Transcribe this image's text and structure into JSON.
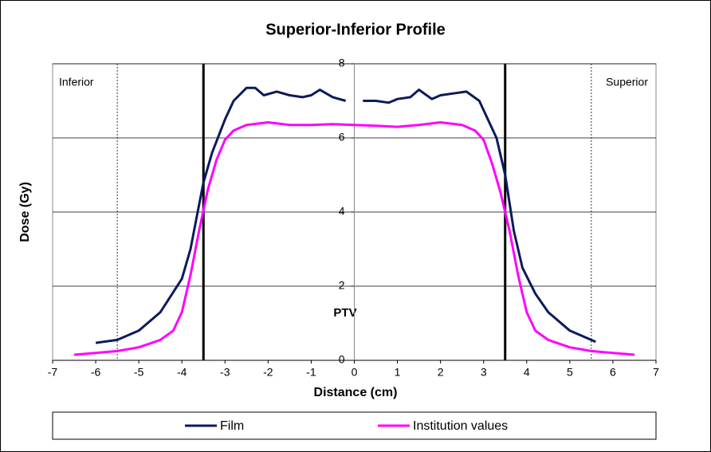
{
  "chart_data": {
    "type": "line",
    "title": "Superior-Inferior Profile",
    "x_label": "Distance (cm)",
    "y_label": "Dose (Gy)",
    "annotations": [
      "Inferior",
      "Superior",
      "PTV"
    ],
    "xlim": [
      -7,
      7
    ],
    "ylim": [
      0,
      8
    ],
    "xticks": [
      -7,
      -6,
      -5,
      -4,
      -3,
      -2,
      -1,
      0,
      1,
      2,
      3,
      4,
      5,
      6,
      7
    ],
    "yticks": [
      0,
      2,
      4,
      6,
      8
    ],
    "grid": true,
    "ptv_lines": [
      -3.5,
      3.5
    ],
    "reference_lines": [
      -5.5,
      5.5
    ],
    "legend": "bottom",
    "series": [
      {
        "name": "Film",
        "color": "#0d1a5c",
        "x": [
          -6,
          -5.5,
          -5,
          -4.5,
          -4,
          -3.8,
          -3.6,
          -3.5,
          -3.3,
          -3,
          -2.8,
          -2.5,
          -2.3,
          -2.1,
          -1.8,
          -1.5,
          -1.2,
          -1,
          -0.8,
          -0.5,
          -0.2,
          0,
          0.2,
          0.5,
          0.8,
          1,
          1.3,
          1.5,
          1.8,
          2,
          2.3,
          2.6,
          2.9,
          3.1,
          3.3,
          3.5,
          3.7,
          3.9,
          4.2,
          4.5,
          5,
          5.3,
          5.6
        ],
        "values": [
          0.47,
          0.55,
          0.8,
          1.3,
          2.2,
          3.0,
          4.2,
          4.8,
          5.6,
          6.5,
          7.0,
          7.35,
          7.35,
          7.15,
          7.25,
          7.15,
          7.1,
          7.15,
          7.3,
          7.1,
          7.0,
          null,
          7.0,
          7.0,
          6.95,
          7.05,
          7.1,
          7.3,
          7.05,
          7.15,
          7.2,
          7.25,
          7.0,
          6.5,
          6.0,
          5.0,
          3.5,
          2.5,
          1.8,
          1.3,
          0.8,
          0.65,
          0.5
        ]
      },
      {
        "name": "Institution values",
        "color": "#ff00ff",
        "x": [
          -6.5,
          -6,
          -5.5,
          -5,
          -4.5,
          -4.2,
          -4,
          -3.8,
          -3.6,
          -3.4,
          -3.2,
          -3,
          -2.8,
          -2.5,
          -2,
          -1.5,
          -1,
          -0.5,
          0,
          0.5,
          1,
          1.5,
          2,
          2.5,
          2.8,
          3,
          3.2,
          3.4,
          3.6,
          3.8,
          4,
          4.2,
          4.5,
          5,
          5.5,
          6,
          6.5
        ],
        "values": [
          0.15,
          0.2,
          0.25,
          0.35,
          0.55,
          0.8,
          1.3,
          2.3,
          3.5,
          4.6,
          5.4,
          5.95,
          6.2,
          6.35,
          6.42,
          6.35,
          6.35,
          6.37,
          6.35,
          6.33,
          6.3,
          6.35,
          6.42,
          6.35,
          6.2,
          5.95,
          5.3,
          4.5,
          3.5,
          2.3,
          1.3,
          0.8,
          0.55,
          0.35,
          0.25,
          0.2,
          0.15
        ]
      }
    ]
  }
}
